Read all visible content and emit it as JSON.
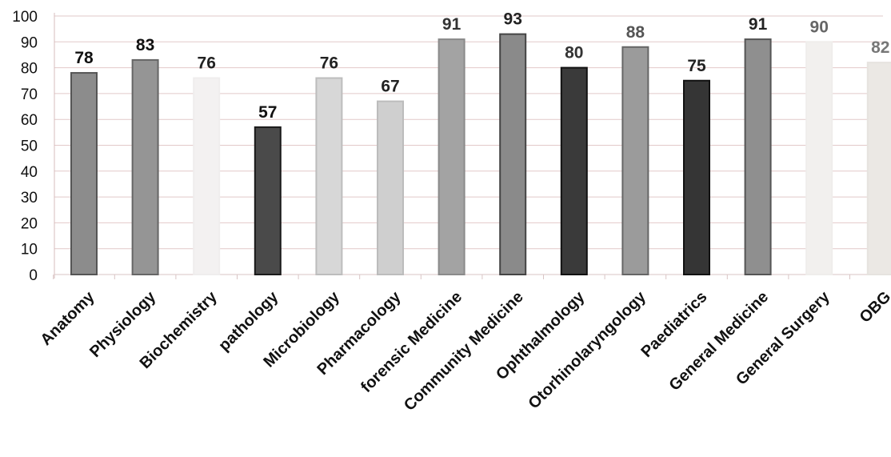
{
  "chart_data": {
    "type": "bar",
    "title": "",
    "xlabel": "",
    "ylabel": "",
    "ylim": [
      0,
      100
    ],
    "yticks": [
      0,
      10,
      20,
      30,
      40,
      50,
      60,
      70,
      80,
      90,
      100
    ],
    "grid": true,
    "categories": [
      "Anatomy",
      "Physiology",
      "Biochemistry",
      "pathology",
      "Microbiology",
      "Pharmacology",
      "forensic Medicine",
      "Community Medicine",
      "Ophthalmology",
      "Otorhinolaryngology",
      "Paediatrics",
      "General Medicine",
      "General Surgery",
      "OBG"
    ],
    "values": [
      78,
      83,
      76,
      57,
      76,
      67,
      91,
      93,
      80,
      88,
      75,
      91,
      90,
      82
    ],
    "data_labels": [
      "78",
      "83",
      "76",
      "57",
      "76",
      "67",
      "91",
      "93",
      "80",
      "88",
      "75",
      "91",
      "90",
      "82"
    ],
    "bar_colors": [
      "#8c8c8c",
      "#959595",
      "#f3f1f1",
      "#4a4a4a",
      "#d7d7d7",
      "#cfcfcf",
      "#a3a3a3",
      "#8a8a8a",
      "#3a3a3a",
      "#9b9b9b",
      "#353535",
      "#8f8f8f",
      "#f2f0ee",
      "#ebe8e4"
    ],
    "bar_edge_colors": [
      "#555555",
      "#666666",
      "#efeded",
      "#1a1a1a",
      "#bdbdbd",
      "#bcbcbc",
      "#8a8a8a",
      "#444444",
      "#111111",
      "#666666",
      "#111111",
      "#555555",
      "#efedeb",
      "#e6e3df"
    ],
    "label_colors": [
      "#111111",
      "#111111",
      "#222222",
      "#111111",
      "#222222",
      "#222222",
      "#333333",
      "#222222",
      "#333333",
      "#555555",
      "#222222",
      "#222222",
      "#666666",
      "#777777"
    ]
  }
}
